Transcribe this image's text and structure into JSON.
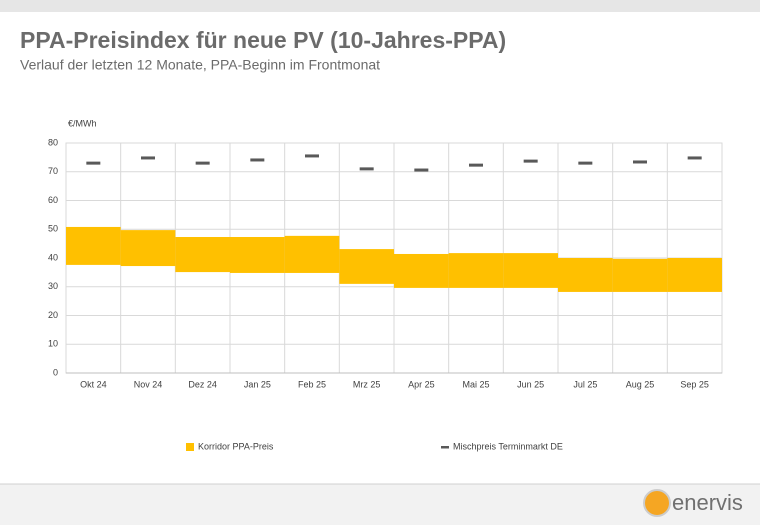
{
  "chart_data": {
    "type": "range-bar",
    "title": "PPA-Preisindex für neue PV (10-Jahres-PPA)",
    "subtitle": "Verlauf der letzten 12 Monate, PPA-Beginn im Frontmonat",
    "y_axis_label": "€/MWh",
    "categories": [
      "Okt 24",
      "Nov 24",
      "Dez 24",
      "Jan 25",
      "Feb 25",
      "Mrz 25",
      "Apr 25",
      "Mai 25",
      "Jun 25",
      "Jul 25",
      "Aug 25",
      "Sep 25"
    ],
    "series": [
      {
        "name": "Korridor PPA-Preis",
        "type": "range",
        "color": "#ffc000",
        "low": [
          37.6,
          37.2,
          35.1,
          34.8,
          34.8,
          31.0,
          29.6,
          29.6,
          29.6,
          28.2,
          28.2,
          28.2
        ],
        "high": [
          50.8,
          49.7,
          47.3,
          47.3,
          47.7,
          43.1,
          41.4,
          41.7,
          41.7,
          40.0,
          39.7,
          40.0
        ]
      },
      {
        "name": "Mischpreis Terminmarkt DE",
        "type": "marker",
        "color": "#595959",
        "values": [
          73.0,
          74.8,
          73.0,
          74.1,
          75.5,
          71.0,
          70.6,
          72.3,
          73.7,
          73.0,
          73.4,
          74.8
        ]
      }
    ],
    "ylim": [
      0,
      80
    ],
    "yticks": [
      0,
      10,
      20,
      30,
      40,
      50,
      60,
      70,
      80
    ],
    "grid": true,
    "legend": "bottom"
  },
  "footer": {
    "logo": "enervis"
  }
}
